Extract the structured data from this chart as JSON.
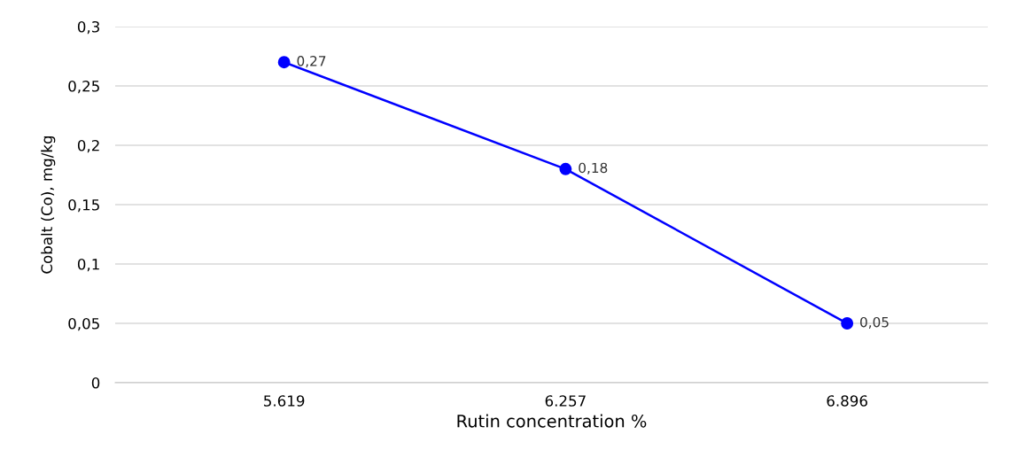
{
  "chart_data": {
    "type": "line",
    "xlabel": "Rutin concentration %",
    "ylabel": "Cobalt (Co), mg/kg",
    "categories": [
      "5.619",
      "6.257",
      "6.896"
    ],
    "series": [
      {
        "color": "#0000ff",
        "values": [
          0.27,
          0.18,
          0.05
        ],
        "value_labels": [
          "0,27",
          "0,18",
          "0,05"
        ]
      }
    ],
    "ylim": [
      0,
      0.3
    ],
    "yticks": [
      0,
      {
        "value": 0.05,
        "label": "0,05"
      },
      {
        "value": 0.1,
        "label": "0,1"
      },
      {
        "value": 0.15,
        "label": "0,15"
      },
      {
        "value": 0.2,
        "label": "0,2"
      },
      {
        "value": 0.25,
        "label": "0,25"
      },
      {
        "value": 0.3,
        "label": "0,3"
      }
    ],
    "grid": "y",
    "marker": "circle",
    "line_style": "solid",
    "legend": false
  }
}
